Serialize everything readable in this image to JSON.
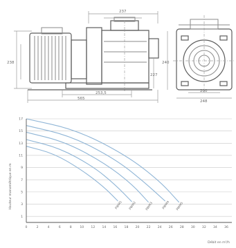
{
  "drawing": {
    "dimensions": {
      "overall_top": "237",
      "side_height": "238",
      "mid_height": "227",
      "length_a": "253,5",
      "length_b": "565",
      "front_height": "240",
      "front_base_1": "200",
      "front_base_2": "248"
    }
  },
  "chart_data": {
    "type": "line",
    "ylabel": "Hauteur manométrique en m",
    "xlabel": "Débit en m³/h",
    "y_ticks": [
      "1",
      "3",
      "5",
      "7",
      "9",
      "11",
      "13",
      "15",
      "17"
    ],
    "x_ticks": [
      "0",
      "2",
      "4",
      "6",
      "8",
      "10",
      "12",
      "14",
      "16",
      "18",
      "20",
      "22",
      "24",
      "26",
      "28",
      "30",
      "32",
      "34",
      "36"
    ],
    "ylim": [
      0,
      17
    ],
    "xlim": [
      0,
      37
    ],
    "grid": true,
    "series": [
      {
        "name": "PWM1",
        "points": [
          [
            0,
            12.5
          ],
          [
            5,
            11.3
          ],
          [
            10,
            8.6
          ],
          [
            14,
            5.8
          ],
          [
            16.5,
            3.5
          ]
        ]
      },
      {
        "name": "PWM2",
        "points": [
          [
            0,
            13.6
          ],
          [
            6,
            12.2
          ],
          [
            12,
            9.2
          ],
          [
            16,
            6.2
          ],
          [
            19,
            3.4
          ]
        ]
      },
      {
        "name": "PWM3",
        "points": [
          [
            0,
            14.8
          ],
          [
            7,
            13.2
          ],
          [
            14,
            9.8
          ],
          [
            19,
            6.3
          ],
          [
            22,
            3.3
          ]
        ]
      },
      {
        "name": "PWM4",
        "points": [
          [
            0,
            15.9
          ],
          [
            8,
            14.2
          ],
          [
            16,
            10.4
          ],
          [
            21,
            6.8
          ],
          [
            25,
            3.5
          ]
        ]
      },
      {
        "name": "PWM5",
        "points": [
          [
            0,
            17.0
          ],
          [
            9,
            15.2
          ],
          [
            18,
            11.0
          ],
          [
            24,
            6.8
          ],
          [
            27.5,
            3.3
          ]
        ]
      }
    ]
  }
}
